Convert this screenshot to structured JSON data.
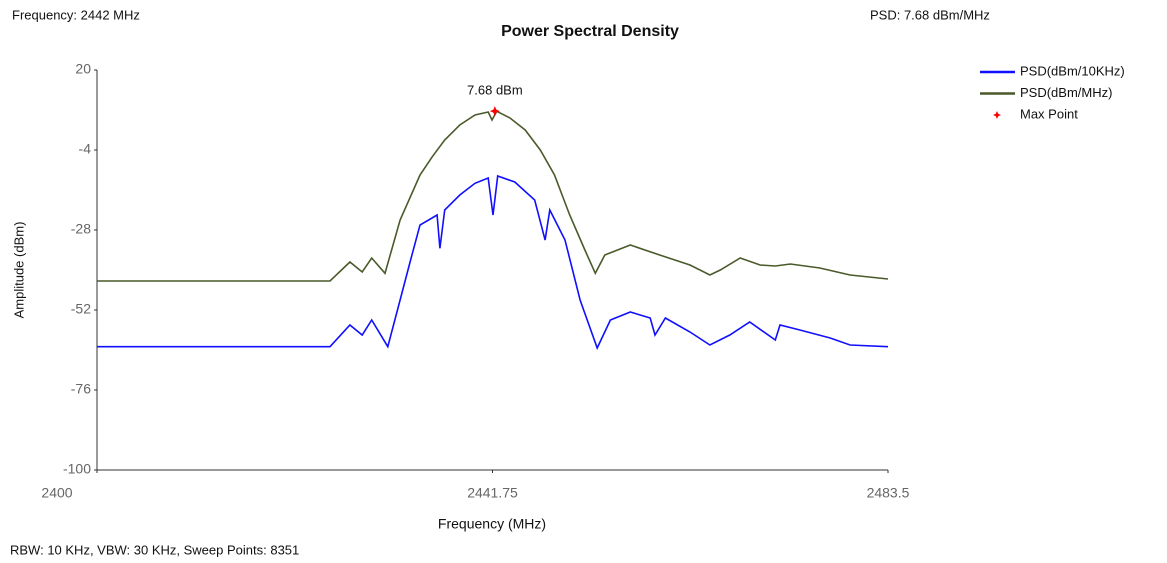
{
  "chart_data": {
    "type": "line",
    "title": "Power Spectral Density",
    "annotations": {
      "frequency": "Frequency: 2442 MHz",
      "psd": "PSD: 7.68 dBm/MHz",
      "settings": "RBW: 10 KHz,  VBW: 30 KHz,  Sweep Points: 8351"
    },
    "x_label": "Frequency (MHz)",
    "y_label": "Amplitude (dBm)",
    "xlim": [
      2400,
      2483.5
    ],
    "xticks": [
      2400,
      2441.75,
      2483.5
    ],
    "ylim": [
      -100,
      20
    ],
    "yticks": [
      20,
      -4,
      -28,
      -52,
      -76,
      -100
    ],
    "grid": false,
    "legend": "top-right",
    "series": [
      {
        "name": "PSD(dBm/10KHz)",
        "color": "#1010ff",
        "x": [
          2400,
          2424.6,
          2426.7,
          2428.0,
          2429.0,
          2430.7,
          2432.0,
          2433.1,
          2434.1,
          2435.9,
          2436.2,
          2436.7,
          2438.3,
          2439.9,
          2441.3,
          2441.8,
          2442.3,
          2444.1,
          2446.2,
          2447.3,
          2447.8,
          2449.4,
          2451.0,
          2452.8,
          2454.2,
          2456.3,
          2458.4,
          2458.9,
          2460.0,
          2462.6,
          2464.7,
          2466.8,
          2468.9,
          2471.6,
          2472.1,
          2474.2,
          2477.4,
          2479.5,
          2483.5
        ],
        "values": [
          -63,
          -63,
          -56.5,
          -59.5,
          -55,
          -63,
          -49,
          -37,
          -26.5,
          -23.5,
          -33.5,
          -22,
          -17.5,
          -14,
          -12.4,
          -23.5,
          -11.8,
          -13.6,
          -19,
          -31,
          -22,
          -31,
          -49,
          -63.4,
          -55,
          -52.6,
          -54.4,
          -59.5,
          -54.4,
          -58.6,
          -62.5,
          -59.5,
          -55.6,
          -61,
          -56.5,
          -58,
          -60.4,
          -62.5,
          -63
        ]
      },
      {
        "name": "PSD(dBm/MHz)",
        "color": "#4a5a2a",
        "x": [
          2400,
          2424.6,
          2426.7,
          2428.0,
          2429.0,
          2430.4,
          2432.0,
          2434.1,
          2435.4,
          2436.7,
          2438.3,
          2439.9,
          2441.3,
          2441.7,
          2442.2,
          2443.6,
          2445.2,
          2446.8,
          2448.3,
          2449.9,
          2451.5,
          2452.6,
          2453.6,
          2456.3,
          2459.4,
          2462.6,
          2464.7,
          2465.8,
          2467.9,
          2470.0,
          2471.6,
          2473.2,
          2476.3,
          2479.5,
          2483.5
        ],
        "values": [
          -43.3,
          -43.3,
          -37.6,
          -40.6,
          -36.4,
          -41,
          -25,
          -11.5,
          -6,
          -1,
          3.5,
          6.5,
          7.4,
          5,
          7.6,
          5.6,
          2,
          -4,
          -11.5,
          -23.5,
          -34,
          -41,
          -35.5,
          -32.5,
          -35.5,
          -38.5,
          -41.5,
          -40,
          -36.4,
          -38.5,
          -38.8,
          -38.2,
          -39.4,
          -41.5,
          -42.7
        ]
      },
      {
        "name": "Max Point",
        "color": "#ff0000",
        "marker": "star",
        "x": [
          2442
        ],
        "values": [
          7.68
        ],
        "value_labels": [
          "7.68 dBm"
        ]
      }
    ]
  }
}
